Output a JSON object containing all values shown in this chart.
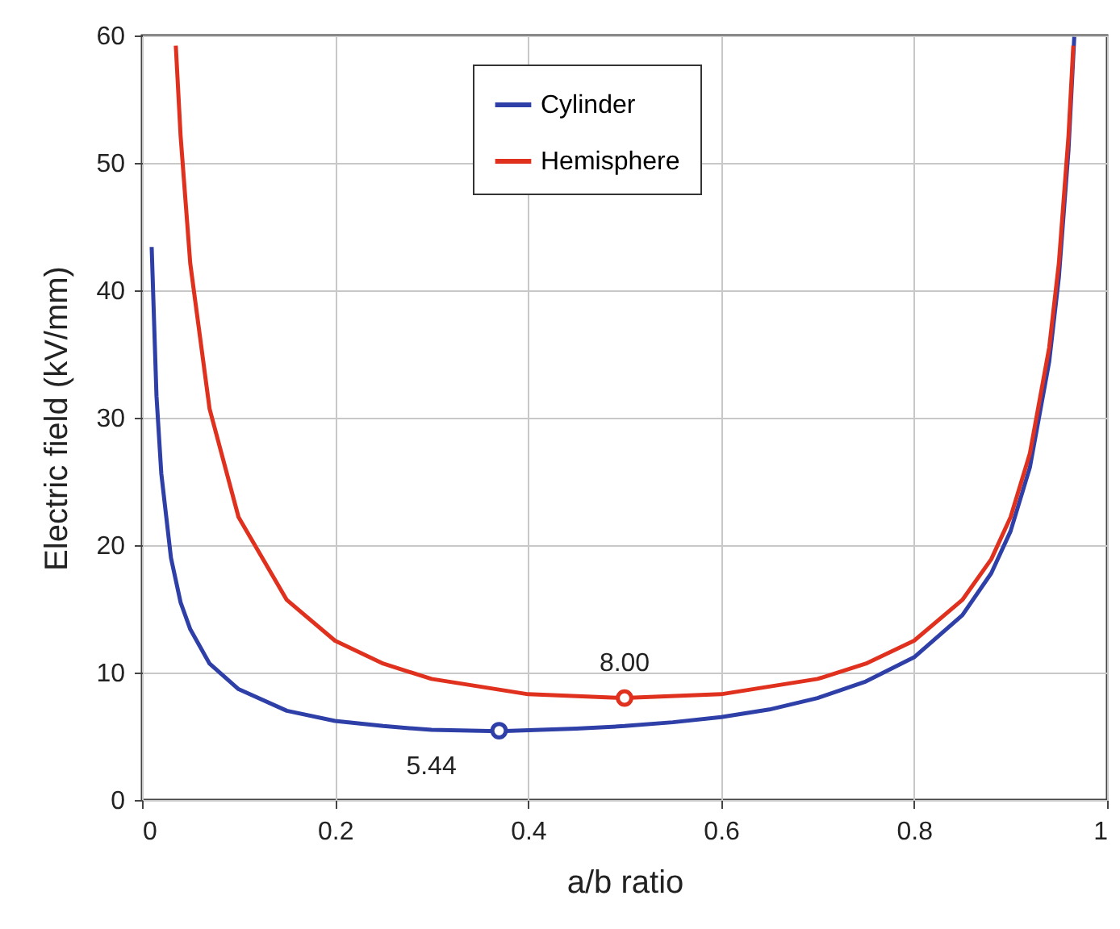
{
  "chart_data": {
    "type": "line",
    "xlabel": "a/b ratio",
    "ylabel": "Electric field (kV/mm)",
    "xlim": [
      0,
      1
    ],
    "ylim": [
      0,
      60
    ],
    "xticks": [
      0,
      0.2,
      0.4,
      0.6,
      0.8,
      1
    ],
    "yticks": [
      0,
      10,
      20,
      30,
      40,
      50,
      60
    ],
    "grid": true,
    "legend": "top",
    "line_style": "solid",
    "marker": "none",
    "series": [
      {
        "name": "Cylinder",
        "color": "#2e3fa8",
        "x": [
          0.01,
          0.015,
          0.02,
          0.03,
          0.04,
          0.05,
          0.07,
          0.1,
          0.15,
          0.2,
          0.25,
          0.3,
          0.37,
          0.45,
          0.5,
          0.55,
          0.6,
          0.65,
          0.7,
          0.75,
          0.8,
          0.85,
          0.88,
          0.9,
          0.92,
          0.94,
          0.95,
          0.96,
          0.966
        ],
        "values": [
          43.4,
          31.7,
          25.6,
          19.0,
          15.5,
          13.4,
          10.7,
          8.7,
          7.0,
          6.2,
          5.8,
          5.5,
          5.4,
          5.6,
          5.8,
          6.1,
          6.5,
          7.1,
          8.0,
          9.3,
          11.2,
          14.5,
          17.8,
          21.1,
          26.1,
          34.4,
          41.0,
          51.0,
          59.9
        ]
      },
      {
        "name": "Hemisphere",
        "color": "#e0301e",
        "x": [
          0.035,
          0.04,
          0.05,
          0.07,
          0.1,
          0.15,
          0.2,
          0.25,
          0.3,
          0.4,
          0.5,
          0.6,
          0.7,
          0.75,
          0.8,
          0.85,
          0.88,
          0.9,
          0.92,
          0.94,
          0.95,
          0.96,
          0.965
        ],
        "values": [
          59.2,
          52.1,
          42.1,
          30.7,
          22.2,
          15.7,
          12.5,
          10.7,
          9.5,
          8.3,
          8.0,
          8.3,
          9.5,
          10.7,
          12.5,
          15.7,
          18.9,
          22.2,
          27.2,
          35.5,
          42.1,
          52.1,
          59.2
        ]
      },
      {
        "type": "scatter",
        "marker": "circle",
        "color": "#2e3fa8",
        "x": [
          0.37
        ],
        "values": [
          5.44
        ]
      },
      {
        "type": "scatter",
        "marker": "circle",
        "color": "#e0301e",
        "x": [
          0.5
        ],
        "values": [
          8.0
        ]
      }
    ],
    "annotations": [
      {
        "text": "8.00",
        "x": 0.5,
        "y": 8.0
      },
      {
        "text": "5.44",
        "x": 0.37,
        "y": 5.44
      }
    ]
  }
}
